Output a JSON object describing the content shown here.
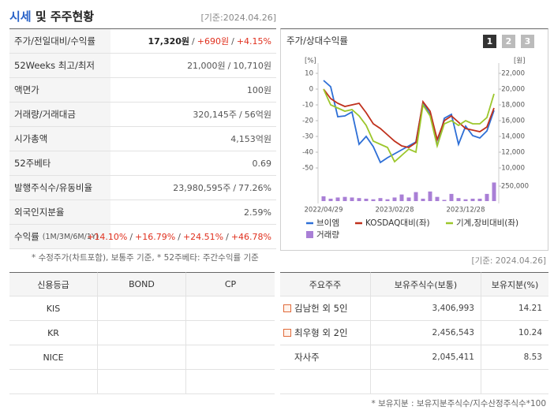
{
  "header": {
    "title_main": "시세",
    "title_rest": "및 주주현황",
    "date": "[기준:2024.04.26]"
  },
  "summary": {
    "rows": [
      {
        "label": "주가/전일대비/수익률",
        "value": [
          {
            "text": "17,320원",
            "color": "#222",
            "bold": true
          },
          {
            "text": "/"
          },
          {
            "text": "+690원",
            "color": "#e0301e"
          },
          {
            "text": "/"
          },
          {
            "text": "+4.15%",
            "color": "#e0301e"
          }
        ]
      },
      {
        "label": "52Weeks 최고/최저",
        "value": [
          {
            "text": "21,000원"
          },
          {
            "text": "/"
          },
          {
            "text": "10,710원"
          }
        ]
      },
      {
        "label": "액면가",
        "value": [
          {
            "text": "100원"
          }
        ]
      },
      {
        "label": "거래량/거래대금",
        "value": [
          {
            "text": "320,145주"
          },
          {
            "text": "/"
          },
          {
            "text": "56억원"
          }
        ]
      },
      {
        "label": "시가총액",
        "value": [
          {
            "text": "4,153억원"
          }
        ]
      },
      {
        "label": "52주베타",
        "value": [
          {
            "text": "0.69"
          }
        ]
      },
      {
        "label": "발행주식수/유동비율",
        "value": [
          {
            "text": "23,980,595주"
          },
          {
            "text": "/"
          },
          {
            "text": "77.26%"
          }
        ]
      },
      {
        "label": "외국인지분율",
        "value": [
          {
            "text": "2.59%"
          }
        ]
      },
      {
        "label": "수익률",
        "label_note": "(1M/3M/6M/1Y)",
        "value": [
          {
            "text": "+14.10%",
            "color": "#e0301e"
          },
          {
            "text": "/"
          },
          {
            "text": "+16.79%",
            "color": "#e0301e"
          },
          {
            "text": "/"
          },
          {
            "text": "+24.51%",
            "color": "#e0301e"
          },
          {
            "text": "/"
          },
          {
            "text": "+46.78%",
            "color": "#e0301e"
          }
        ]
      }
    ]
  },
  "chart_panel": {
    "title": "주가/상대수익률",
    "buttons": [
      "1",
      "2",
      "3"
    ]
  },
  "chart_data": {
    "type": "line",
    "x": [
      "2022/04/29",
      null,
      null,
      null,
      null,
      null,
      null,
      null,
      null,
      null,
      "2023/02/28",
      null,
      null,
      null,
      null,
      null,
      null,
      null,
      null,
      null,
      "2023/12/28",
      null,
      null,
      null,
      null
    ],
    "y_label": "[%]",
    "y2_label": "[원]",
    "ylim": [
      -50,
      10
    ],
    "yticks": [
      10,
      0,
      -10,
      -20,
      -30,
      -40,
      -50
    ],
    "y2lim": [
      10000,
      22000
    ],
    "y2ticks": [
      {
        "value": 22000,
        "label": "22,000"
      },
      {
        "value": 20000,
        "label": "20,000"
      },
      {
        "value": 18000,
        "label": "18,000"
      },
      {
        "value": 16000,
        "label": "16,000"
      },
      {
        "value": 14000,
        "label": "14,000"
      },
      {
        "value": 12000,
        "label": "12,000"
      },
      {
        "value": 10000,
        "label": "10,000"
      }
    ],
    "y3lim": [
      0,
      250000
    ],
    "y3ticks": [
      {
        "value": 250000,
        "label": "250,000"
      }
    ],
    "grid": false,
    "series": [
      {
        "name": "브이엠",
        "color": "#2e6fd6",
        "axis": "y2",
        "values": [
          21100,
          20300,
          16500,
          16600,
          17100,
          13000,
          14000,
          12700,
          10700,
          11300,
          11800,
          12300,
          12800,
          13300,
          18300,
          16800,
          12800,
          16300,
          16800,
          13000,
          15300,
          14100,
          13800,
          14700,
          17300
        ]
      },
      {
        "name": "KOSDAQ대비(좌)",
        "color": "#c0311d",
        "axis": "y",
        "values": [
          0,
          -6,
          -9,
          -11,
          -10,
          -9,
          -15,
          -22,
          -25,
          -29,
          -33,
          -36,
          -37,
          -34,
          -8,
          -14,
          -32,
          -20,
          -17,
          -21,
          -25,
          -26,
          -27,
          -24,
          -12
        ]
      },
      {
        "name": "기계,장비대비(좌)",
        "color": "#9cc62b",
        "axis": "y",
        "values": [
          0,
          -10,
          -12,
          -14,
          -13,
          -17,
          -23,
          -33,
          -35,
          -37,
          -46,
          -42,
          -38,
          -40,
          -10,
          -17,
          -36,
          -22,
          -20,
          -23,
          -20,
          -22,
          -22,
          -18,
          -3
        ]
      },
      {
        "name": "거래량",
        "color": "#a97fd6",
        "axis": "y3",
        "values": [
          80000,
          40000,
          60000,
          70000,
          60000,
          50000,
          40000,
          30000,
          50000,
          30000,
          60000,
          110000,
          60000,
          150000,
          40000,
          160000,
          70000,
          20000,
          120000,
          50000,
          30000,
          40000,
          40000,
          120000,
          310000
        ]
      }
    ]
  },
  "footnotes": {
    "left": "* 수정주가(차트포함), 보통주 기준, * 52주베타: 주간수익률 기준",
    "date": "[기준: 2024.04.26]",
    "bottom": "* 보유지분 : 보유지분주식수/지수산정주식수*100"
  },
  "credit": {
    "headers": [
      "신용등급",
      "BOND",
      "CP"
    ],
    "rows": [
      [
        "KIS"
      ],
      [
        "KR"
      ],
      [
        "NICE"
      ]
    ]
  },
  "holders": {
    "headers": [
      "주요주주",
      "보유주식수(보통)",
      "보유지분(%)"
    ],
    "rows": [
      {
        "name": "김남헌 외 5인",
        "shares": "3,406,993",
        "pct": "14.21",
        "expandable": true
      },
      {
        "name": "최우형 외 2인",
        "shares": "2,456,543",
        "pct": "10.24",
        "expandable": true
      },
      {
        "name": "자사주",
        "shares": "2,045,411",
        "pct": "8.53",
        "expandable": false
      }
    ]
  }
}
